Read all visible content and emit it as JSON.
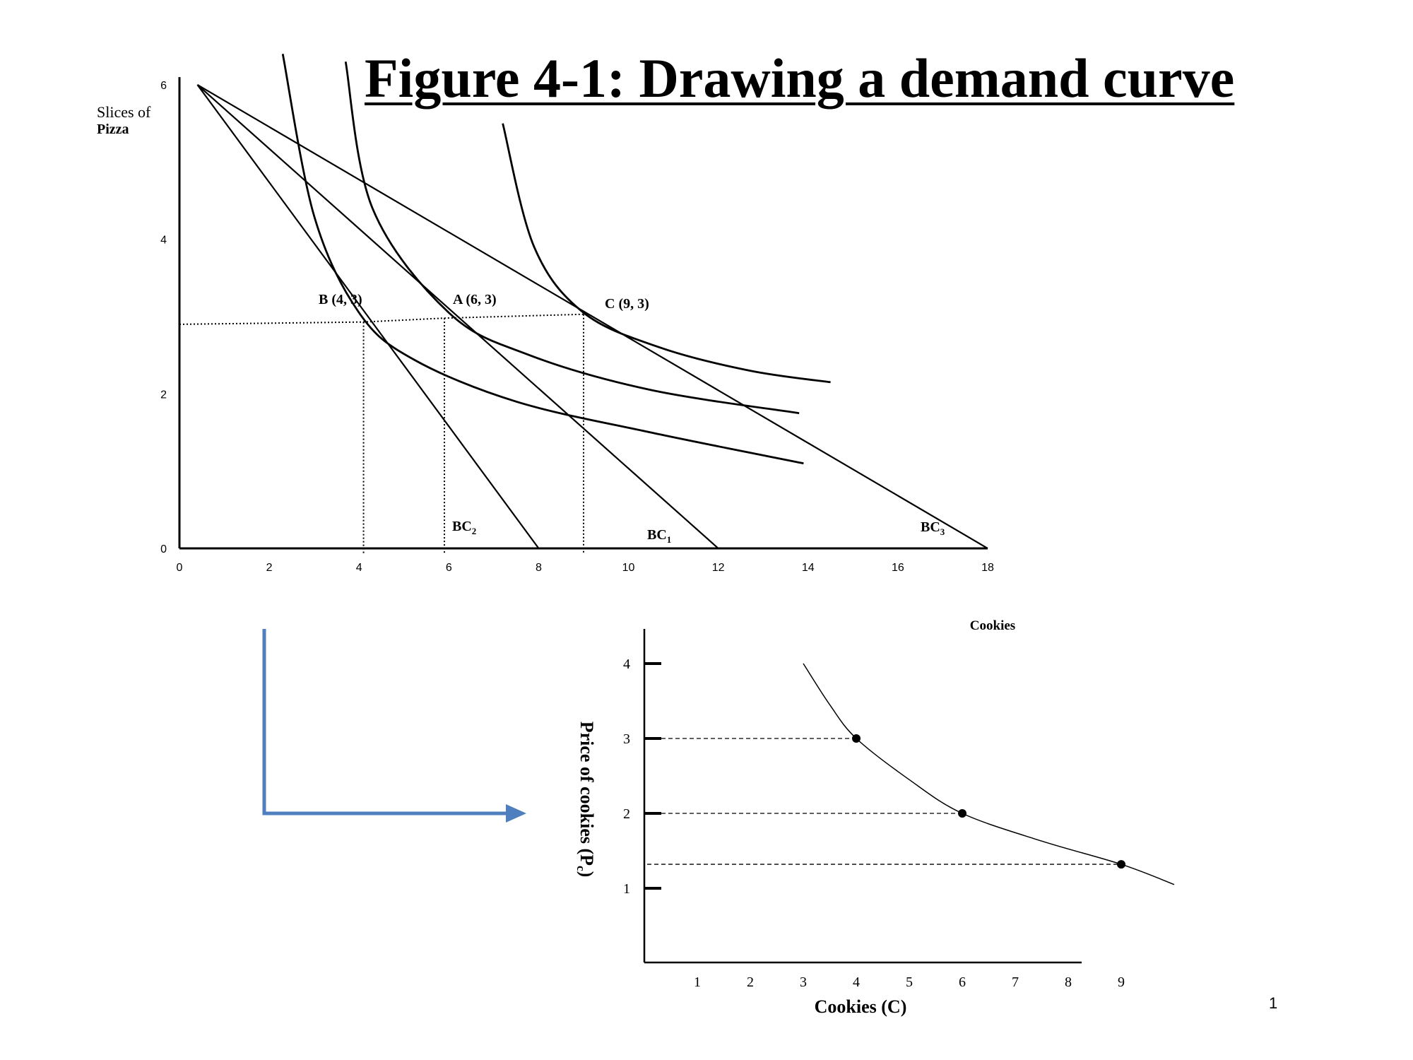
{
  "title": "Figure 4-1: Drawing a demand curve",
  "slide_number": "1",
  "colors": {
    "arrow": "#4f7fbe",
    "ink": "#000000"
  },
  "chart_data": [
    {
      "type": "line",
      "title": "",
      "xlabel": "",
      "ylabel": "Slices of Pizza",
      "ylabel_lines": [
        "Slices of",
        "Pizza"
      ],
      "xlim": [
        0,
        18
      ],
      "ylim": [
        0,
        6
      ],
      "x_ticks": [
        0,
        2,
        4,
        6,
        8,
        10,
        12,
        14,
        16,
        18
      ],
      "y_ticks": [
        0,
        2,
        4,
        6
      ],
      "grid": false,
      "budget_lines": [
        {
          "label_main": "BC",
          "label_sub": "2",
          "x_intercept": 8,
          "y_intercept": 6
        },
        {
          "label_main": "BC",
          "label_sub": "1",
          "x_intercept": 12,
          "y_intercept": 6
        },
        {
          "label_main": "BC",
          "label_sub": "3",
          "x_intercept": 18,
          "y_intercept": 6
        }
      ],
      "indifference_curves": [
        {
          "points": [
            [
              2.3,
              6.4
            ],
            [
              3.0,
              4.3
            ],
            [
              4.0,
              3.05
            ],
            [
              5.2,
              2.45
            ],
            [
              7.5,
              1.9
            ],
            [
              10.5,
              1.5
            ],
            [
              13.9,
              1.1
            ]
          ]
        },
        {
          "points": [
            [
              3.7,
              6.3
            ],
            [
              4.3,
              4.4
            ],
            [
              6.0,
              3.05
            ],
            [
              7.8,
              2.5
            ],
            [
              10.5,
              2.05
            ],
            [
              13.8,
              1.75
            ]
          ]
        },
        {
          "points": [
            [
              7.2,
              5.5
            ],
            [
              7.9,
              3.9
            ],
            [
              9.0,
              3.05
            ],
            [
              10.7,
              2.6
            ],
            [
              12.7,
              2.3
            ],
            [
              14.5,
              2.15
            ]
          ]
        }
      ],
      "points": [
        {
          "label": "B (4, 3)",
          "x": 4.1,
          "y": 2.93
        },
        {
          "label": "A (6, 3)",
          "x": 5.9,
          "y": 2.98
        },
        {
          "label": "C (9, 3)",
          "x": 9.0,
          "y": 3.03
        }
      ]
    },
    {
      "type": "line",
      "title": "Cookies",
      "xlabel": "Cookies (C)",
      "ylabel_main": "Price of cookies (P",
      "ylabel_sub": "c",
      "ylabel_close": ")",
      "xlim": [
        0,
        9.9
      ],
      "ylim": [
        0.3,
        4.45
      ],
      "x_ticks": [
        1,
        2,
        3,
        4,
        5,
        6,
        7,
        8,
        9
      ],
      "y_ticks": [
        1,
        2,
        3,
        4
      ],
      "grid": false,
      "series": [
        {
          "x": [
            3.0,
            3.5,
            4.0,
            5.0,
            6.0,
            7.5,
            9.0,
            10.0
          ],
          "y": [
            4.0,
            3.45,
            3.0,
            2.45,
            2.0,
            1.63,
            1.32,
            1.05
          ]
        }
      ],
      "points": [
        {
          "x": 4,
          "y": 3
        },
        {
          "x": 6,
          "y": 2
        },
        {
          "x": 9,
          "y": 1.32
        }
      ]
    }
  ]
}
